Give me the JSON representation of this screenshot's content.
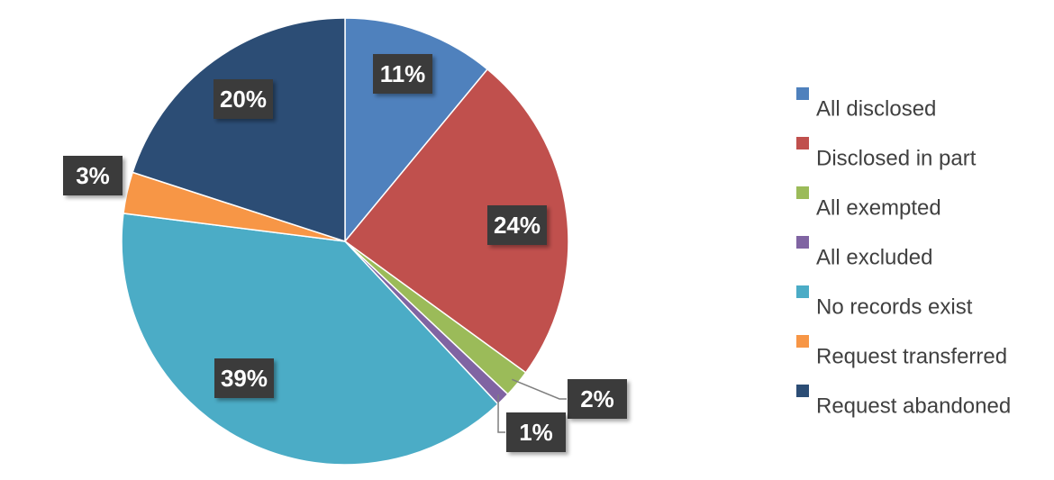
{
  "chart_data": {
    "type": "pie",
    "categories": [
      "All disclosed",
      "Disclosed in part",
      "All exempted",
      "All excluded",
      "No records exist",
      "Request transferred",
      "Request abandoned"
    ],
    "values": [
      11,
      24,
      2,
      1,
      39,
      3,
      20
    ],
    "value_labels": [
      "11%",
      "24%",
      "2%",
      "1%",
      "39%",
      "3%",
      "20%"
    ],
    "colors": [
      "#4f81bd",
      "#c0504d",
      "#9bbb59",
      "#8064a2",
      "#4bacc6",
      "#f79646",
      "#2c4d75"
    ],
    "legend": "right"
  }
}
